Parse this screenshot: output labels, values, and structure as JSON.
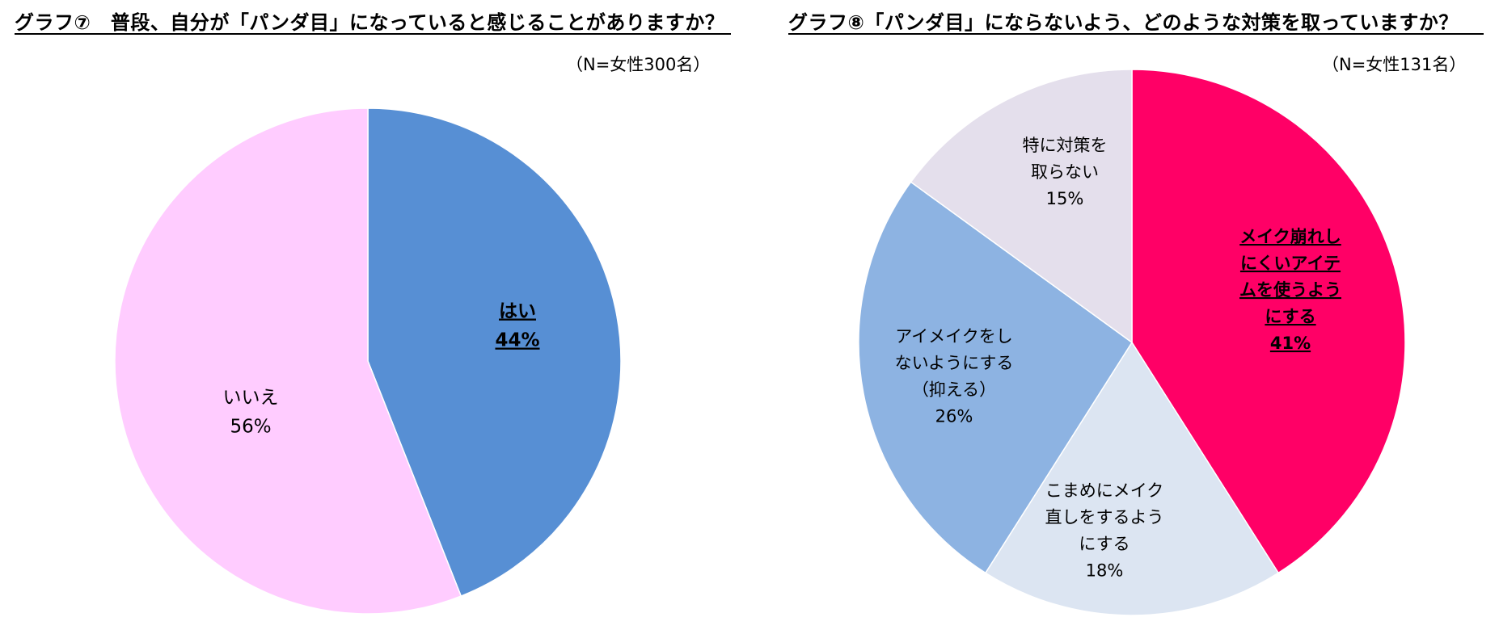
{
  "chart_data": [
    {
      "type": "pie",
      "title": "グラフ⑦　普段、自分が「パンダ目」になっていると感じることがありますか？",
      "subtitle": "（N=女性300名）",
      "slices": [
        {
          "lines": [
            "はい"
          ],
          "percent_label": "44%",
          "value": 44,
          "color": "#578fd4",
          "highlight": true
        },
        {
          "lines": [
            "いいえ"
          ],
          "percent_label": "56%",
          "value": 56,
          "color": "#ffccff",
          "highlight": false
        }
      ]
    },
    {
      "type": "pie",
      "title": "グラフ⑧「パンダ目」にならないよう、どのような対策を取っていますか？",
      "subtitle": "（N=女性131名）",
      "slices": [
        {
          "lines": [
            "メイク崩れし",
            "にくいアイテ",
            "ムを使うよう",
            "にする"
          ],
          "percent_label": "41%",
          "value": 41,
          "color": "#ff0066",
          "highlight": true
        },
        {
          "lines": [
            "こまめにメイク",
            "直しをするよう",
            "にする"
          ],
          "percent_label": "18%",
          "value": 18,
          "color": "#dce5f2",
          "highlight": false
        },
        {
          "lines": [
            "アイメイクをし",
            "ないようにする",
            "（抑える）"
          ],
          "percent_label": "26%",
          "value": 26,
          "color": "#8db3e2",
          "highlight": false
        },
        {
          "lines": [
            "特に対策を",
            "取らない"
          ],
          "percent_label": "15%",
          "value": 15,
          "color": "#e4dfec",
          "highlight": false
        }
      ]
    }
  ]
}
